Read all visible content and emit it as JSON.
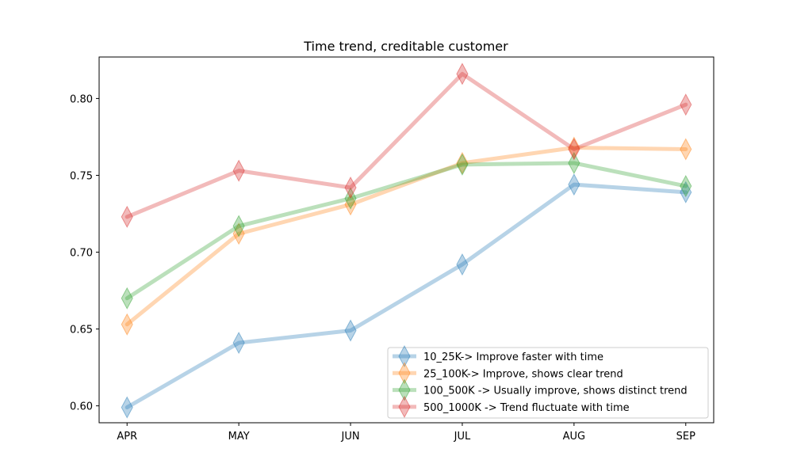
{
  "chart_data": {
    "type": "line",
    "title": "Time trend, creditable customer",
    "xlabel": "",
    "ylabel": "",
    "categories": [
      "APR",
      "MAY",
      "JUN",
      "JUL",
      "AUG",
      "SEP"
    ],
    "ylim": [
      0.589,
      0.827
    ],
    "yticks": [
      0.6,
      0.65,
      0.7,
      0.75,
      0.8
    ],
    "ytick_labels": [
      "0.60",
      "0.65",
      "0.70",
      "0.75",
      "0.80"
    ],
    "grid": false,
    "legend_position": "lower-right",
    "marker": "thin-diamond",
    "series": [
      {
        "name": "10_25K-> Improve faster with time",
        "color": "#1f77b4",
        "values": [
          0.599,
          0.641,
          0.649,
          0.692,
          0.744,
          0.739
        ]
      },
      {
        "name": "25_100K-> Improve, shows clear trend",
        "color": "#ff7f0e",
        "values": [
          0.653,
          0.712,
          0.731,
          0.758,
          0.768,
          0.767
        ]
      },
      {
        "name": "100_500K -> Usually improve, shows distinct trend",
        "color": "#2ca02c",
        "values": [
          0.67,
          0.717,
          0.735,
          0.757,
          0.758,
          0.743
        ]
      },
      {
        "name": "500_1000K -> Trend fluctuate with time",
        "color": "#d62728",
        "values": [
          0.723,
          0.753,
          0.742,
          0.816,
          0.767,
          0.796
        ]
      }
    ]
  }
}
